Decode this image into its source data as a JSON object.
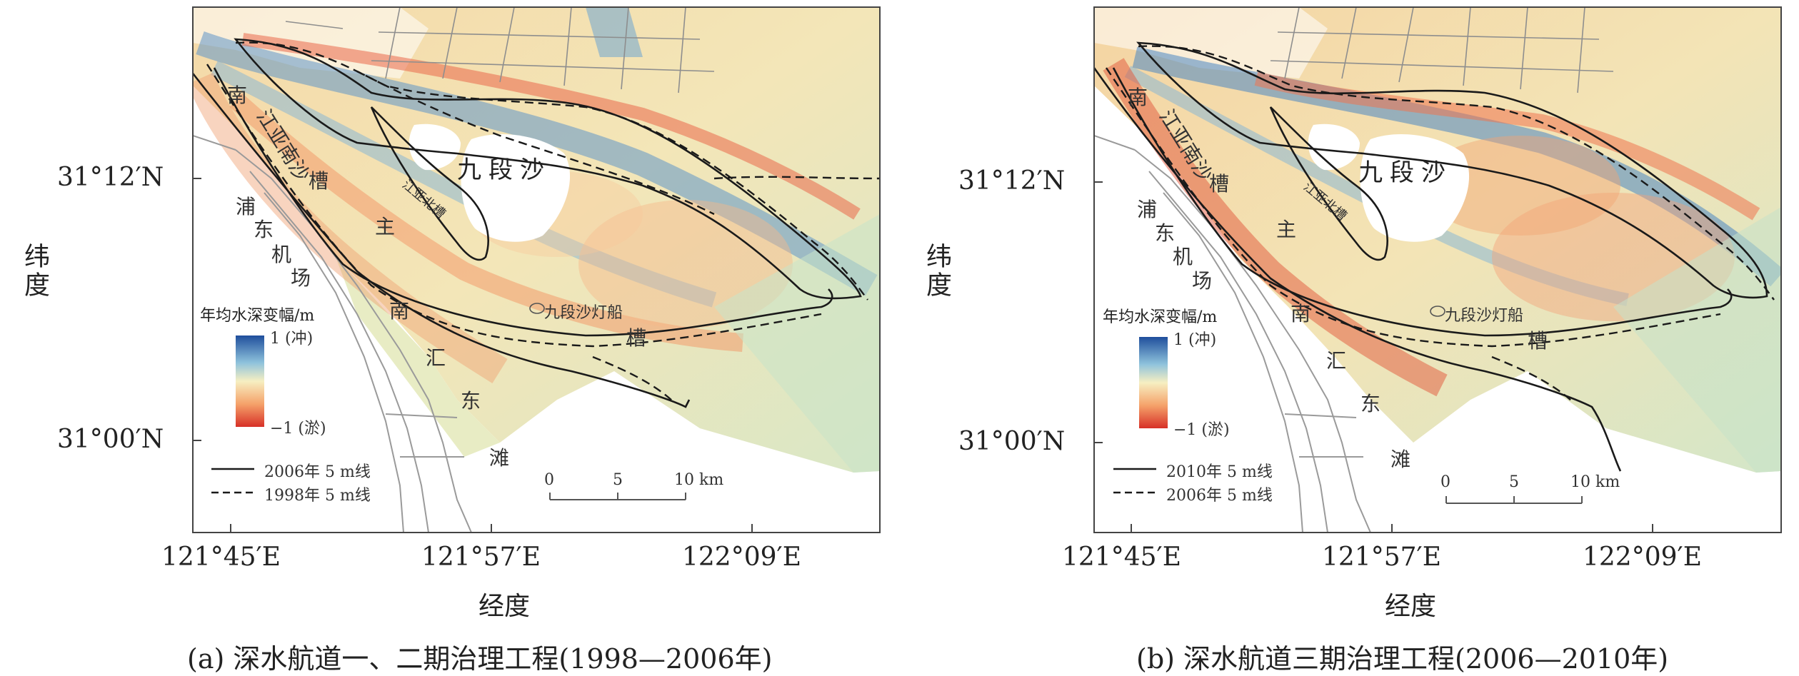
{
  "x_label": "经度",
  "y_label": "纬度",
  "panels": [
    {
      "id": "a",
      "caption": "(a) 深水航道一、二期治理工程(1998—2006年)",
      "y_ticks": [
        "31°12′N",
        "31°00′N"
      ],
      "x_ticks": [
        "121°45′E",
        "121°57′E",
        "122°09′E"
      ],
      "colorbar": {
        "title": "年均水深变幅/m",
        "max_label": "1 (冲)",
        "min_label": "−1 (淤)"
      },
      "legend": {
        "solid": "2006年 5 m线",
        "dashed": "1998年 5 m线"
      },
      "scale": {
        "ticks": [
          "0",
          "5",
          "10 km"
        ]
      },
      "places": {
        "jiuduansha": "九段沙",
        "jiangya": "江亚南沙",
        "nan": "南",
        "cao": "槽",
        "pudong": "浦",
        "dong": "东",
        "ji": "机",
        "chang": "场",
        "zhu": "主",
        "nan2": "南",
        "hui": "汇",
        "dong2": "东",
        "tan": "滩",
        "cao2": "槽",
        "lightship": "九段沙灯船",
        "small_sha": "江亚北槽"
      }
    },
    {
      "id": "b",
      "caption": "(b) 深水航道三期治理工程(2006—2010年)",
      "y_ticks": [
        "31°12′N",
        "31°00′N"
      ],
      "x_ticks": [
        "121°45′E",
        "121°57′E",
        "122°09′E"
      ],
      "colorbar": {
        "title": "年均水深变幅/m",
        "max_label": "1 (冲)",
        "min_label": "−1 (淤)"
      },
      "legend": {
        "solid": "2010年 5 m线",
        "dashed": "2006年 5 m线"
      },
      "scale": {
        "ticks": [
          "0",
          "5",
          "10 km"
        ]
      },
      "places": {
        "jiuduansha": "九段沙",
        "jiangya": "江亚南沙",
        "nan": "南",
        "cao": "槽",
        "pudong": "浦",
        "dong": "东",
        "ji": "机",
        "chang": "场",
        "zhu": "主",
        "nan2": "南",
        "hui": "汇",
        "dong2": "东",
        "tan": "滩",
        "cao2": "槽",
        "lightship": "九段沙灯船",
        "small_sha": "江亚北槽"
      }
    }
  ],
  "colors": {
    "accretion": "#d73027",
    "scour": "#2c5fa8",
    "neutral": "#f5e9b8",
    "line": "#222222"
  }
}
